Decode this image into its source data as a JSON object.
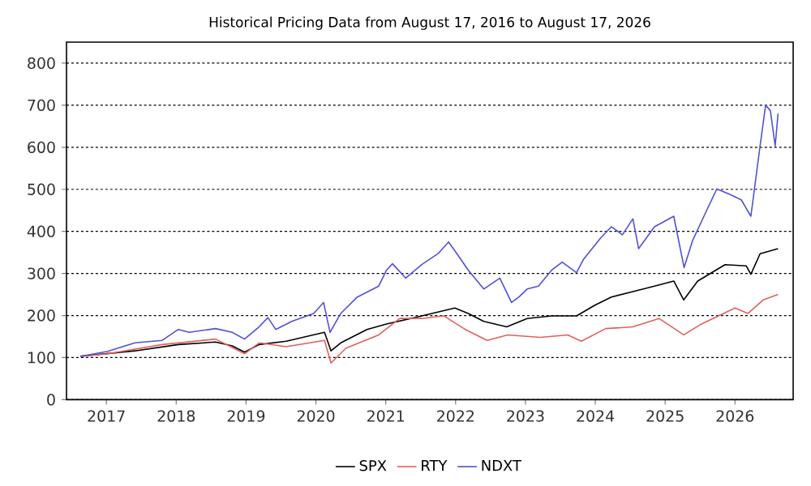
{
  "chart_data": {
    "type": "line",
    "title": "Historical Pricing Data from August 17, 2016 to August 17, 2026",
    "xlim": [
      "2016-06-06",
      "2026-11-01"
    ],
    "ylim": [
      0,
      850
    ],
    "xticks": [
      "2017",
      "2018",
      "2019",
      "2020",
      "2021",
      "2022",
      "2023",
      "2024",
      "2025",
      "2026"
    ],
    "yticks": [
      0,
      100,
      200,
      300,
      400,
      500,
      600,
      700,
      800
    ],
    "grid": "y",
    "legend": "bottom",
    "line_style": "solid",
    "marker": "none",
    "series": [
      {
        "name": "SPX",
        "color": "#000000",
        "x": [
          "2016-08-17",
          "2017-05-30",
          "2018-01-12",
          "2018-07-26",
          "2018-10-20",
          "2018-12-24",
          "2019-03-10",
          "2019-07-30",
          "2020-02-15",
          "2020-03-20",
          "2020-05-10",
          "2020-09-25",
          "2021-01-05",
          "2021-07-08",
          "2021-12-28",
          "2022-03-08",
          "2022-05-28",
          "2022-09-25",
          "2023-01-10",
          "2023-05-18",
          "2023-09-25",
          "2024-01-01",
          "2024-03-25",
          "2024-07-16",
          "2024-11-06",
          "2025-02-15",
          "2025-04-08",
          "2025-06-20",
          "2025-11-10",
          "2026-03-01",
          "2026-03-25",
          "2026-05-12",
          "2026-08-14"
        ],
        "values": [
          103,
          116,
          131,
          137,
          128,
          113,
          131,
          139,
          160,
          116,
          135,
          167,
          180,
          199,
          218,
          205,
          186,
          173,
          193,
          199,
          199,
          225,
          244,
          257,
          270,
          282,
          237,
          282,
          321,
          318,
          298,
          347,
          359
        ]
      },
      {
        "name": "RTY",
        "color": "#e06060",
        "x": [
          "2016-08-17",
          "2017-01-08",
          "2017-10-20",
          "2018-07-26",
          "2018-12-24",
          "2019-03-10",
          "2019-07-30",
          "2020-02-15",
          "2020-03-20",
          "2020-06-05",
          "2020-11-25",
          "2021-03-15",
          "2021-07-08",
          "2021-11-01",
          "2022-02-20",
          "2022-06-15",
          "2022-09-30",
          "2023-03-20",
          "2023-08-10",
          "2023-10-20",
          "2024-02-25",
          "2024-07-16",
          "2024-11-30",
          "2025-04-08",
          "2025-07-10",
          "2026-01-01",
          "2026-03-10",
          "2026-05-28",
          "2026-08-14"
        ],
        "values": [
          103,
          109,
          131,
          144,
          109,
          135,
          126,
          141,
          87,
          122,
          154,
          193,
          193,
          199,
          167,
          141,
          154,
          148,
          154,
          139,
          169,
          173,
          193,
          154,
          180,
          218,
          205,
          237,
          250
        ]
      },
      {
        "name": "NDXT",
        "color": "#5050d8",
        "x": [
          "2016-08-17",
          "2017-01-08",
          "2017-05-30",
          "2017-10-20",
          "2018-01-12",
          "2018-03-10",
          "2018-07-26",
          "2018-10-20",
          "2018-12-24",
          "2019-03-10",
          "2019-04-25",
          "2019-06-05",
          "2019-08-28",
          "2019-12-20",
          "2020-02-10",
          "2020-03-15",
          "2020-05-10",
          "2020-08-05",
          "2020-11-25",
          "2021-01-05",
          "2021-02-05",
          "2021-04-15",
          "2021-07-08",
          "2021-10-01",
          "2021-11-25",
          "2022-01-08",
          "2022-03-08",
          "2022-05-28",
          "2022-08-20",
          "2022-10-20",
          "2022-11-28",
          "2023-01-10",
          "2023-03-10",
          "2023-05-18",
          "2023-07-12",
          "2023-09-25",
          "2023-11-01",
          "2024-01-30",
          "2024-03-25",
          "2024-05-22",
          "2024-07-16",
          "2024-08-15",
          "2024-11-06",
          "2025-02-15",
          "2025-04-10",
          "2025-05-25",
          "2025-08-05",
          "2025-09-28",
          "2025-12-05",
          "2026-02-03",
          "2026-03-25",
          "2026-05-12",
          "2026-06-10",
          "2026-07-05",
          "2026-07-30",
          "2026-08-14"
        ],
        "values": [
          103,
          115,
          135,
          141,
          167,
          160,
          169,
          160,
          144,
          173,
          195,
          167,
          186,
          205,
          231,
          160,
          205,
          244,
          270,
          308,
          323,
          289,
          321,
          347,
          375,
          347,
          308,
          263,
          289,
          231,
          244,
          263,
          270,
          308,
          327,
          302,
          334,
          385,
          411,
          392,
          430,
          359,
          411,
          436,
          314,
          379,
          449,
          501,
          488,
          475,
          436,
          603,
          700,
          687,
          603,
          680
        ]
      }
    ]
  }
}
